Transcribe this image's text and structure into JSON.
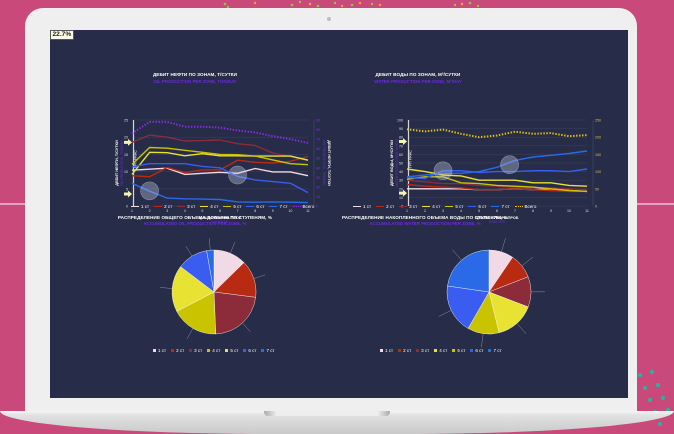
{
  "colors": {
    "background": "#c8497a",
    "screen": "#272d48",
    "zone_1": "#f2d9e6",
    "zone_2": "#b82a12",
    "zone_3": "#8c2c3a",
    "zone_4": "#e8e232",
    "zone_5": "#c9c300",
    "zone_6": "#3a5cf0",
    "zone_7": "#2a6ae6",
    "total_oil": "#8a2be2",
    "total_water": "#e5c20c"
  },
  "chart_data": [
    {
      "type": "line",
      "title": "ДЕБИТ НЕФТИ ПО ЗОНАМ, Т/СУТКИ",
      "subtitle": "OIL PRODUCTION PER ZONE, TON/DAY",
      "xlabel": "ЦИКЛЫ ОТБОРА ПРОБ",
      "xlabel_sub": "SAMPLES",
      "ylabel": "ДЕБИТ НЕФТИ, Т/СУТКИ",
      "ylabel_sub": "OIL PRODUCTION, TON/DAY",
      "ylabel_right": "ДЕБИТ НЕФТИ, Т/СУТКИ",
      "ylabel_right_sub": "OIL PRODUCTION, TON/DAY",
      "marker_label": "ГРП",
      "marker_label_sub": "FRAC",
      "x": [
        1,
        2,
        3,
        4,
        5,
        6,
        7,
        8,
        9,
        10,
        11
      ],
      "ylim": [
        0,
        25
      ],
      "yticks": [
        0,
        5,
        10,
        15,
        20,
        25
      ],
      "y2lim": [
        0,
        90
      ],
      "y2ticks": [
        0,
        10,
        20,
        30,
        40,
        50,
        60,
        70,
        80,
        90
      ],
      "series": [
        {
          "name": "1 ст",
          "color_key": "zone_1",
          "axis": "left",
          "values": [
            10.4,
            10.7,
            11.0,
            9.2,
            9.5,
            9.8,
            9.5,
            10.9,
            9.9,
            9.9,
            8.8
          ]
        },
        {
          "name": "2 ст",
          "color_key": "zone_2",
          "axis": "left",
          "values": [
            8.8,
            8.5,
            11.2,
            9.7,
            10.5,
            10.5,
            13.3,
            12.7,
            12.5,
            13.0,
            14.4
          ]
        },
        {
          "name": "3 ст",
          "color_key": "zone_3",
          "axis": "left",
          "values": [
            18.5,
            20.6,
            20.0,
            18.9,
            19.0,
            19.2,
            18.1,
            17.6,
            15.4,
            14.4,
            13.3
          ]
        },
        {
          "name": "4 ст",
          "color_key": "zone_4",
          "axis": "left",
          "values": [
            9.2,
            15.6,
            15.5,
            14.6,
            15.2,
            14.6,
            14.6,
            14.5,
            14.5,
            14.5,
            13.3
          ]
        },
        {
          "name": "5 ст",
          "color_key": "zone_5",
          "axis": "left",
          "values": [
            12.1,
            17.0,
            16.8,
            16.2,
            15.6,
            15.0,
            14.9,
            14.5,
            13.4,
            12.3,
            12.0
          ]
        },
        {
          "name": "6 ст",
          "color_key": "zone_6",
          "axis": "left",
          "values": [
            11.4,
            12.3,
            12.3,
            12.3,
            11.5,
            11.1,
            8.6,
            7.6,
            7.1,
            6.6,
            3.9
          ]
        },
        {
          "name": "7 ст",
          "color_key": "zone_7",
          "axis": "left",
          "values": [
            6.6,
            4.3,
            2.3,
            2.1,
            2.0,
            1.9,
            1.2,
            1.1,
            1.2,
            1.1,
            1.0
          ]
        },
        {
          "name": "Всего",
          "color_key": "total_oil",
          "axis": "right",
          "style": "dotted",
          "values": [
            76,
            88,
            88,
            83,
            83,
            82,
            79,
            77,
            73,
            70,
            66
          ]
        }
      ],
      "legend": "bottom"
    },
    {
      "type": "line",
      "title": "ДЕБИТ ВОДЫ ПО ЗОНАМ, М³/СУТКИ",
      "subtitle": "WATER PRODUCTION PER ZONE, M³/DAY",
      "xlabel": "ЦИКЛЫ ОТБОРА ПРОБ",
      "xlabel_sub": "SAMPLES",
      "ylabel": "ДЕБИТ ВОДЫ, М³/СУТКИ",
      "ylabel_sub": "WATER PRODUCTION, M³/DAY",
      "marker_label": "ГРП",
      "marker_label_sub": "FRAC",
      "x": [
        1,
        2,
        3,
        4,
        5,
        6,
        7,
        8,
        9,
        10,
        11
      ],
      "ylim": [
        0,
        100
      ],
      "yticks": [
        0,
        10,
        20,
        30,
        40,
        50,
        60,
        70,
        80,
        90,
        100
      ],
      "y2lim": [
        0,
        250
      ],
      "y2ticks": [
        0,
        50,
        100,
        150,
        200,
        250
      ],
      "series": [
        {
          "name": "1 ст",
          "color_key": "zone_1",
          "axis": "left",
          "values": [
            20,
            20,
            20,
            20,
            19,
            19,
            20,
            19,
            20,
            18,
            17
          ]
        },
        {
          "name": "2 ст",
          "color_key": "zone_2",
          "axis": "left",
          "values": [
            25,
            23,
            22,
            21,
            19,
            19,
            20,
            19,
            18,
            17,
            17
          ]
        },
        {
          "name": "3 ст",
          "color_key": "zone_3",
          "axis": "left",
          "values": [
            30,
            28,
            26,
            26,
            24,
            23,
            22,
            21,
            21,
            20,
            19
          ]
        },
        {
          "name": "4 ст",
          "color_key": "zone_4",
          "axis": "left",
          "values": [
            43,
            40,
            36,
            35,
            30,
            30,
            30,
            27,
            27,
            24,
            23
          ]
        },
        {
          "name": "5 ст",
          "color_key": "zone_5",
          "axis": "left",
          "values": [
            31,
            34,
            34,
            27,
            26,
            24,
            23,
            22,
            20,
            18,
            17
          ]
        },
        {
          "name": "6 ст",
          "color_key": "zone_6",
          "axis": "left",
          "values": [
            33,
            32,
            41,
            41,
            39,
            40,
            40,
            41,
            41,
            40,
            43
          ]
        },
        {
          "name": "7 ст",
          "color_key": "zone_7",
          "axis": "left",
          "values": [
            34,
            36,
            38,
            38,
            40,
            45,
            53,
            57,
            59,
            61,
            64
          ]
        },
        {
          "name": "Всего",
          "color_key": "total_water",
          "axis": "right",
          "style": "dotted",
          "values": [
            223,
            217,
            222,
            210,
            200,
            205,
            216,
            210,
            212,
            203,
            206
          ]
        }
      ],
      "legend": "bottom"
    },
    {
      "type": "pie",
      "title": "РАСПРЕДЕЛЕНИЕ ОБЩЕГО ОБЪЕМА ДОБЫЧИ ПО СТУПЕНЯМ, %",
      "subtitle": "ACCUMULATED OIL PRODUCTION PER ZONE, %",
      "categories": [
        "1 ст",
        "2 ст",
        "3 ст",
        "4 ст",
        "5 ст",
        "6 ст",
        "7 ст"
      ],
      "values": [
        12.6,
        14.3,
        22.2,
        17.9,
        17.9,
        11.8,
        2.8
      ],
      "labels": [
        "12.6%",
        "14.3%",
        "22.2%",
        "17.9%",
        "17.9%",
        "11.8%",
        "2.8%"
      ],
      "color_keys": [
        "zone_1",
        "zone_2",
        "zone_3",
        "zone_5",
        "zone_4",
        "zone_6",
        "zone_7"
      ],
      "legend": "bottom"
    },
    {
      "type": "pie",
      "title": "РАСПРЕДЕЛЕНИЕ НАКОПЛЕННОГО ОБЪЕМА ВОДЫ ПО СТУПЕНЯМ, %",
      "subtitle": "ACCUMULATED WATER PRODUCTION PER ZONE, %",
      "categories": [
        "1 ст",
        "2 ст",
        "3 ст",
        "4 ст",
        "5 ст",
        "6 ст",
        "7 ст"
      ],
      "values": [
        9.5,
        9.6,
        11.7,
        15.3,
        12.2,
        19.0,
        22.7
      ],
      "labels": [
        "9.5%",
        "9.6%",
        "11.7%",
        "15.3%",
        "12.2%",
        "19.0%",
        "22.7%"
      ],
      "color_keys": [
        "zone_1",
        "zone_2",
        "zone_3",
        "zone_4",
        "zone_5",
        "zone_6",
        "zone_7"
      ],
      "legend": "bottom"
    }
  ]
}
